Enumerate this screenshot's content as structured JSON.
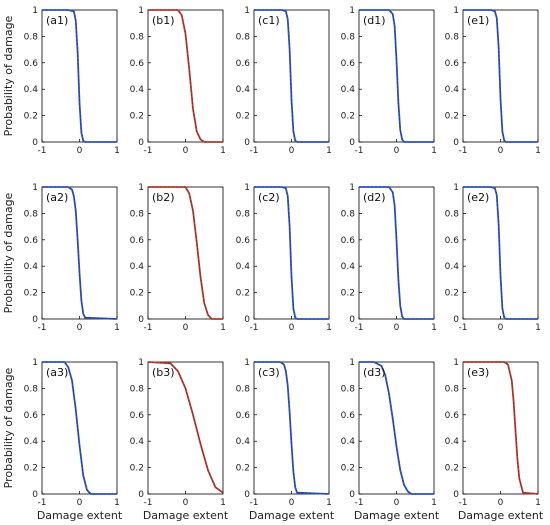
{
  "figure": {
    "ylabel": "Probability of damage",
    "xlabel": "Damage extent",
    "colors": {
      "blue": "#2a55c8",
      "red": "#c0392b",
      "axis": "#000000",
      "dash": "#2a2a2a"
    }
  },
  "chart_data": [
    {
      "label": "(a1)",
      "type": "line",
      "color": "blue",
      "xlim": [
        -1,
        1
      ],
      "ylim": [
        0,
        1
      ],
      "xticks": [
        "-1",
        "0",
        "1"
      ],
      "yticks": [
        "0",
        "0.2",
        "0.4",
        "0.6",
        "0.8",
        "1"
      ],
      "series": [
        {
          "x": [
            -1,
            -0.3,
            -0.15,
            -0.1,
            -0.05,
            0,
            0.05,
            0.1,
            0.15,
            1
          ],
          "y": [
            1,
            1,
            0.99,
            0.92,
            0.68,
            0.3,
            0.07,
            0.01,
            0,
            0
          ]
        }
      ]
    },
    {
      "label": "(b1)",
      "type": "line",
      "color": "red",
      "xlim": [
        -1,
        1
      ],
      "ylim": [
        0,
        1
      ],
      "xticks": [
        "-1",
        "0",
        "1"
      ],
      "yticks": [
        "0",
        "0.2",
        "0.4",
        "0.6",
        "0.8",
        "1"
      ],
      "series": [
        {
          "x": [
            -1,
            -0.2,
            -0.1,
            0,
            0.1,
            0.2,
            0.3,
            0.4,
            0.5,
            1
          ],
          "y": [
            1,
            1,
            0.96,
            0.82,
            0.55,
            0.25,
            0.08,
            0.02,
            0,
            0
          ]
        }
      ]
    },
    {
      "label": "(c1)",
      "type": "line",
      "color": "blue",
      "xlim": [
        -1,
        1
      ],
      "ylim": [
        0,
        1
      ],
      "xticks": [
        "-1",
        "0",
        "1"
      ],
      "yticks": [
        "0",
        "0.2",
        "0.4",
        "0.6",
        "0.8",
        "1"
      ],
      "series": [
        {
          "x": [
            -1,
            -0.25,
            -0.15,
            -0.1,
            -0.05,
            0,
            0.05,
            0.1,
            0.15,
            1
          ],
          "y": [
            1,
            1,
            0.99,
            0.93,
            0.7,
            0.32,
            0.08,
            0.01,
            0,
            0
          ]
        }
      ]
    },
    {
      "label": "(d1)",
      "type": "line",
      "color": "blue",
      "xlim": [
        -1,
        1
      ],
      "ylim": [
        0,
        1
      ],
      "xticks": [
        "-1",
        "0",
        "1"
      ],
      "yticks": [
        "0",
        "0.2",
        "0.4",
        "0.6",
        "0.8",
        "1"
      ],
      "series": [
        {
          "x": [
            -1,
            -0.2,
            -0.1,
            -0.05,
            0,
            0.05,
            0.1,
            0.15,
            0.2,
            1
          ],
          "y": [
            1,
            1,
            0.97,
            0.88,
            0.62,
            0.3,
            0.09,
            0.02,
            0,
            0
          ]
        }
      ]
    },
    {
      "label": "(e1)",
      "type": "line",
      "color": "blue",
      "xlim": [
        -1,
        1
      ],
      "ylim": [
        0,
        1
      ],
      "xticks": [
        "-1",
        "0",
        "1"
      ],
      "yticks": [
        "0",
        "0.2",
        "0.4",
        "0.6",
        "0.8",
        "1"
      ],
      "series": [
        {
          "x": [
            -1,
            -0.25,
            -0.15,
            -0.1,
            -0.05,
            0,
            0.05,
            0.1,
            0.15,
            1
          ],
          "y": [
            1,
            1,
            0.99,
            0.94,
            0.72,
            0.33,
            0.08,
            0.01,
            0,
            0
          ]
        }
      ]
    },
    {
      "label": "(a2)",
      "type": "line",
      "color": "blue",
      "xlim": [
        -1,
        1
      ],
      "ylim": [
        0,
        1
      ],
      "xticks": [
        "-1",
        "0",
        "1"
      ],
      "yticks": [
        "0",
        "0.2",
        "0.4",
        "0.6",
        "0.8",
        "1"
      ],
      "series": [
        {
          "x": [
            -1,
            -0.3,
            -0.2,
            -0.15,
            -0.1,
            -0.05,
            0,
            0.05,
            0.1,
            0.15,
            1
          ],
          "y": [
            1,
            1,
            0.98,
            0.93,
            0.82,
            0.6,
            0.35,
            0.14,
            0.04,
            0.01,
            0
          ]
        }
      ]
    },
    {
      "label": "(b2)",
      "type": "line",
      "color": "red",
      "xlim": [
        -1,
        1
      ],
      "ylim": [
        0,
        1
      ],
      "xticks": [
        "-1",
        "0",
        "1"
      ],
      "yticks": [
        "0",
        "0.2",
        "0.4",
        "0.6",
        "0.8",
        "1"
      ],
      "series": [
        {
          "x": [
            -1,
            0,
            0.1,
            0.2,
            0.3,
            0.4,
            0.5,
            0.6,
            0.7,
            1
          ],
          "y": [
            1,
            1,
            0.95,
            0.82,
            0.58,
            0.32,
            0.12,
            0.03,
            0,
            0
          ]
        }
      ]
    },
    {
      "label": "(c2)",
      "type": "line",
      "color": "blue",
      "xlim": [
        -1,
        1
      ],
      "ylim": [
        0,
        1
      ],
      "xticks": [
        "-1",
        "0",
        "1"
      ],
      "yticks": [
        "0",
        "0.2",
        "0.4",
        "0.6",
        "0.8",
        "1"
      ],
      "series": [
        {
          "x": [
            -1,
            -0.25,
            -0.15,
            -0.1,
            -0.05,
            0,
            0.05,
            0.1,
            0.15,
            1
          ],
          "y": [
            1,
            1,
            0.99,
            0.93,
            0.7,
            0.32,
            0.08,
            0.01,
            0,
            0
          ]
        }
      ]
    },
    {
      "label": "(d2)",
      "type": "line",
      "color": "blue",
      "xlim": [
        -1,
        1
      ],
      "ylim": [
        0,
        1
      ],
      "xticks": [
        "-1",
        "0",
        "1"
      ],
      "yticks": [
        "0",
        "0.2",
        "0.4",
        "0.6",
        "0.8",
        "1"
      ],
      "series": [
        {
          "x": [
            -1,
            -0.2,
            -0.1,
            -0.05,
            0,
            0.05,
            0.1,
            0.15,
            0.2,
            1
          ],
          "y": [
            1,
            1,
            0.96,
            0.86,
            0.6,
            0.3,
            0.1,
            0.02,
            0,
            0
          ]
        }
      ]
    },
    {
      "label": "(e2)",
      "type": "line",
      "color": "blue",
      "xlim": [
        -1,
        1
      ],
      "ylim": [
        0,
        1
      ],
      "xticks": [
        "-1",
        "0",
        "1"
      ],
      "yticks": [
        "0",
        "0.2",
        "0.4",
        "0.6",
        "0.8",
        "1"
      ],
      "series": [
        {
          "x": [
            -1,
            -0.25,
            -0.15,
            -0.1,
            -0.05,
            0,
            0.05,
            0.1,
            0.15,
            1
          ],
          "y": [
            1,
            1,
            0.99,
            0.94,
            0.72,
            0.33,
            0.08,
            0.01,
            0,
            0
          ]
        }
      ]
    },
    {
      "label": "(a3)",
      "type": "line",
      "color": "blue",
      "xlim": [
        -1,
        1
      ],
      "ylim": [
        0,
        1
      ],
      "xticks": [
        "-1",
        "0",
        "1"
      ],
      "yticks": [
        "0",
        "0.2",
        "0.4",
        "0.6",
        "0.8",
        "1"
      ],
      "series": [
        {
          "x": [
            -1,
            -0.4,
            -0.3,
            -0.2,
            -0.1,
            0,
            0.1,
            0.2,
            0.3,
            1
          ],
          "y": [
            1,
            1,
            0.96,
            0.86,
            0.64,
            0.37,
            0.14,
            0.03,
            0,
            0
          ]
        }
      ]
    },
    {
      "label": "(b3)",
      "type": "line",
      "color": "red",
      "xlim": [
        -1,
        1
      ],
      "ylim": [
        0,
        1
      ],
      "xticks": [
        "-1",
        "0",
        "1"
      ],
      "yticks": [
        "0",
        "0.2",
        "0.4",
        "0.6",
        "0.8",
        "1"
      ],
      "series": [
        {
          "x": [
            -1,
            -0.4,
            -0.2,
            0,
            0.2,
            0.4,
            0.6,
            0.8,
            1
          ],
          "y": [
            1,
            0.99,
            0.93,
            0.8,
            0.6,
            0.38,
            0.18,
            0.05,
            0.01
          ]
        }
      ]
    },
    {
      "label": "(c3)",
      "type": "line",
      "color": "blue",
      "xlim": [
        -1,
        1
      ],
      "ylim": [
        0,
        1
      ],
      "xticks": [
        "-1",
        "0",
        "1"
      ],
      "yticks": [
        "0",
        "0.2",
        "0.4",
        "0.6",
        "0.8",
        "1"
      ],
      "series": [
        {
          "x": [
            -1,
            -0.3,
            -0.2,
            -0.15,
            -0.1,
            -0.05,
            0,
            0.05,
            0.1,
            0.15,
            1
          ],
          "y": [
            1,
            1,
            0.98,
            0.93,
            0.82,
            0.62,
            0.38,
            0.17,
            0.05,
            0.01,
            0
          ]
        }
      ]
    },
    {
      "label": "(d3)",
      "type": "line",
      "color": "blue",
      "xlim": [
        -1,
        1
      ],
      "ylim": [
        0,
        1
      ],
      "xticks": [
        "-1",
        "0",
        "1"
      ],
      "yticks": [
        "0",
        "0.2",
        "0.4",
        "0.6",
        "0.8",
        "1"
      ],
      "series": [
        {
          "x": [
            -1,
            -0.6,
            -0.4,
            -0.3,
            -0.2,
            -0.1,
            0,
            0.1,
            0.2,
            0.3,
            0.4,
            1
          ],
          "y": [
            1,
            1,
            0.97,
            0.9,
            0.76,
            0.57,
            0.36,
            0.18,
            0.07,
            0.02,
            0,
            0
          ]
        }
      ]
    },
    {
      "label": "(e3)",
      "type": "line",
      "color": "red",
      "xlim": [
        -1,
        1
      ],
      "ylim": [
        0,
        1
      ],
      "xticks": [
        "-1",
        "0",
        "1"
      ],
      "yticks": [
        "0",
        "0.2",
        "0.4",
        "0.6",
        "0.8",
        "1"
      ],
      "series": [
        {
          "x": [
            -1,
            0.1,
            0.2,
            0.3,
            0.35,
            0.4,
            0.45,
            0.5,
            0.6,
            1
          ],
          "y": [
            1,
            1,
            0.98,
            0.86,
            0.7,
            0.48,
            0.27,
            0.12,
            0.01,
            0
          ]
        }
      ]
    }
  ]
}
